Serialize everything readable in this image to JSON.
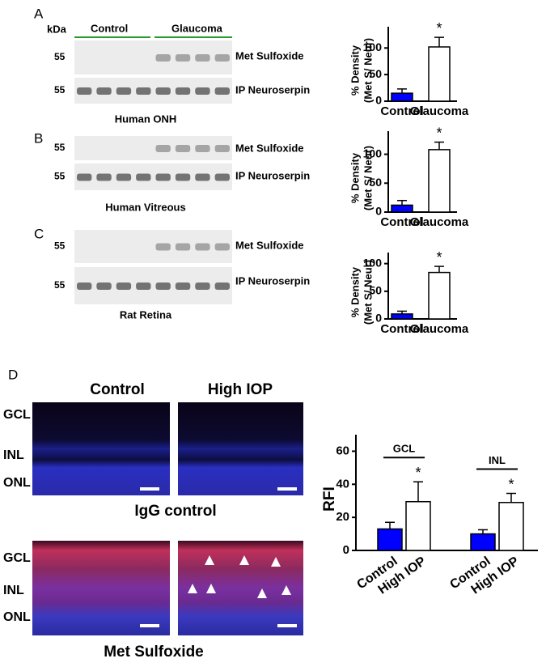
{
  "blots": [
    {
      "label": "A",
      "kda": "kDa",
      "lane_groups": [
        "Control",
        "Glaucoma"
      ],
      "markers": [
        "55",
        "55"
      ],
      "bands": [
        "Met Sulfoxide",
        "IP Neuroserpin"
      ],
      "caption": "Human ONH"
    },
    {
      "label": "B",
      "markers": [
        "55",
        "55"
      ],
      "bands": [
        "Met Sulfoxide",
        "IP Neuroserpin"
      ],
      "caption": "Human Vitreous"
    },
    {
      "label": "C",
      "markers": [
        "55",
        "55"
      ],
      "bands": [
        "Met Sulfoxide",
        "IP Neuroserpin"
      ],
      "caption": "Rat Retina"
    }
  ],
  "histology": {
    "label": "D",
    "columns": [
      "Control",
      "High IOP"
    ],
    "rows": [
      "IgG control",
      "Met Sulfoxide"
    ],
    "layers": [
      "GCL",
      "INL",
      "ONL"
    ]
  },
  "chart_data": [
    {
      "type": "bar",
      "ylabel": [
        "% Density",
        "(Met S/ Neur)"
      ],
      "categories": [
        "Control",
        "Glaucoma"
      ],
      "values": [
        15,
        102
      ],
      "errors": [
        8,
        18
      ],
      "colors": [
        "#0000ff",
        "#ffffff"
      ],
      "ylim": [
        0,
        140
      ],
      "yticks": [
        0,
        50,
        100
      ],
      "annotations": [
        {
          "text": "*",
          "category": "Glaucoma"
        }
      ]
    },
    {
      "type": "bar",
      "ylabel": [
        "% Density",
        "(Met S/ Neur)"
      ],
      "categories": [
        "Control",
        "Glaucoma"
      ],
      "values": [
        12,
        108
      ],
      "errors": [
        8,
        13
      ],
      "colors": [
        "#0000ff",
        "#ffffff"
      ],
      "ylim": [
        0,
        140
      ],
      "yticks": [
        0,
        50,
        100
      ],
      "annotations": [
        {
          "text": "*",
          "category": "Glaucoma"
        }
      ]
    },
    {
      "type": "bar",
      "ylabel": [
        "% Density",
        "(Met S/ Neur)"
      ],
      "categories": [
        "Control",
        "Glaucoma"
      ],
      "values": [
        9,
        84
      ],
      "errors": [
        5,
        11
      ],
      "colors": [
        "#0000ff",
        "#ffffff"
      ],
      "ylim": [
        0,
        120
      ],
      "yticks": [
        0,
        50,
        100
      ],
      "annotations": [
        {
          "text": "*",
          "category": "Glaucoma"
        }
      ]
    },
    {
      "type": "bar",
      "ylabel": [
        "RFI"
      ],
      "group_labels": [
        "GCL",
        "INL"
      ],
      "categories": [
        "Control",
        "High IOP",
        "Control",
        "High IOP"
      ],
      "values": [
        13,
        29.5,
        10,
        29
      ],
      "errors": [
        4,
        12,
        2.5,
        5.5
      ],
      "colors": [
        "#0000ff",
        "#ffffff",
        "#0000ff",
        "#ffffff"
      ],
      "ylim": [
        0,
        70
      ],
      "yticks": [
        0,
        20,
        40,
        60
      ],
      "annotations": [
        {
          "text": "*",
          "category": 1
        },
        {
          "text": "*",
          "category": 3
        }
      ]
    }
  ]
}
